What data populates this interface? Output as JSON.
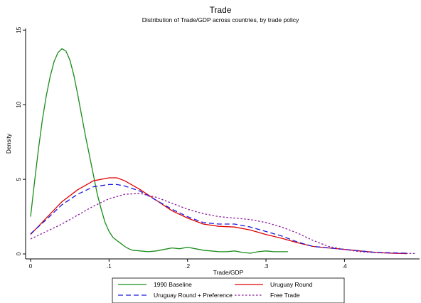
{
  "chart_data": {
    "type": "line",
    "title": "Trade",
    "subtitle": "Distribution of Trade/GDP across countries, by trade policy",
    "xlabel": "Trade/GDP",
    "ylabel": "Density",
    "xlim": [
      0,
      0.5
    ],
    "ylim": [
      0,
      15
    ],
    "x_ticks": [
      0,
      0.1,
      0.2,
      0.3,
      0.4
    ],
    "x_tick_labels": [
      "0",
      ".1",
      ".2",
      ".3",
      ".4"
    ],
    "y_ticks": [
      0,
      5,
      10,
      15
    ],
    "y_tick_labels": [
      "0",
      "5",
      "10",
      "15"
    ],
    "grid": false,
    "legend_position": "bottom",
    "series": [
      {
        "name": "1990 Baseline",
        "color": "#1a8c1a",
        "dash": "solid",
        "x": [
          0,
          0.005,
          0.01,
          0.015,
          0.02,
          0.025,
          0.03,
          0.035,
          0.04,
          0.045,
          0.05,
          0.055,
          0.06,
          0.065,
          0.07,
          0.075,
          0.08,
          0.085,
          0.09,
          0.095,
          0.1,
          0.105,
          0.11,
          0.115,
          0.12,
          0.125,
          0.13,
          0.14,
          0.15,
          0.16,
          0.17,
          0.18,
          0.19,
          0.2,
          0.21,
          0.22,
          0.23,
          0.24,
          0.25,
          0.26,
          0.27,
          0.28,
          0.29,
          0.3,
          0.31,
          0.32,
          0.328
        ],
        "y": [
          2.5,
          4.8,
          7.0,
          9.0,
          10.6,
          11.9,
          12.9,
          13.5,
          13.75,
          13.6,
          13.0,
          12.0,
          10.7,
          9.3,
          7.9,
          6.6,
          5.3,
          4.0,
          3.0,
          2.1,
          1.5,
          1.1,
          0.9,
          0.7,
          0.5,
          0.35,
          0.25,
          0.2,
          0.15,
          0.2,
          0.3,
          0.4,
          0.35,
          0.45,
          0.35,
          0.25,
          0.2,
          0.15,
          0.15,
          0.2,
          0.1,
          0.05,
          0.15,
          0.2,
          0.15,
          0.15,
          0.15
        ]
      },
      {
        "name": "Uruguay Round",
        "color": "#e00000",
        "dash": "solid",
        "x": [
          0,
          0.02,
          0.04,
          0.06,
          0.08,
          0.1,
          0.11,
          0.12,
          0.14,
          0.16,
          0.18,
          0.2,
          0.22,
          0.24,
          0.26,
          0.28,
          0.3,
          0.32,
          0.34,
          0.36,
          0.38,
          0.4,
          0.42,
          0.44,
          0.46,
          0.48
        ],
        "y": [
          1.3,
          2.4,
          3.5,
          4.3,
          4.9,
          5.1,
          5.1,
          4.9,
          4.3,
          3.6,
          2.9,
          2.4,
          2.0,
          1.85,
          1.8,
          1.6,
          1.3,
          1.05,
          0.75,
          0.5,
          0.4,
          0.3,
          0.2,
          0.1,
          0.05,
          0.02
        ]
      },
      {
        "name": "Uruguay Round + Preference",
        "color": "#1a1ae0",
        "dash": "dashed",
        "x": [
          0,
          0.02,
          0.04,
          0.06,
          0.08,
          0.1,
          0.11,
          0.12,
          0.14,
          0.16,
          0.18,
          0.2,
          0.22,
          0.24,
          0.26,
          0.28,
          0.3,
          0.32,
          0.34,
          0.36,
          0.38,
          0.4,
          0.42,
          0.44,
          0.46,
          0.48
        ],
        "y": [
          1.35,
          2.3,
          3.3,
          4.0,
          4.5,
          4.65,
          4.65,
          4.55,
          4.2,
          3.6,
          3.0,
          2.5,
          2.1,
          2.0,
          2.0,
          1.8,
          1.5,
          1.2,
          0.8,
          0.5,
          0.4,
          0.3,
          0.2,
          0.1,
          0.08,
          0.05
        ]
      },
      {
        "name": "Free Trade",
        "color": "#8b1a9e",
        "dash": "dotted",
        "x": [
          0,
          0.02,
          0.04,
          0.06,
          0.08,
          0.1,
          0.12,
          0.14,
          0.16,
          0.18,
          0.2,
          0.22,
          0.24,
          0.26,
          0.28,
          0.3,
          0.32,
          0.34,
          0.36,
          0.38,
          0.4,
          0.42,
          0.44,
          0.46,
          0.48,
          0.49
        ],
        "y": [
          1.0,
          1.5,
          2.0,
          2.6,
          3.2,
          3.7,
          4.0,
          4.05,
          3.8,
          3.4,
          3.0,
          2.7,
          2.5,
          2.4,
          2.3,
          2.1,
          1.8,
          1.4,
          0.9,
          0.5,
          0.3,
          0.15,
          0.08,
          0.05,
          0.04,
          0.03
        ]
      }
    ]
  }
}
